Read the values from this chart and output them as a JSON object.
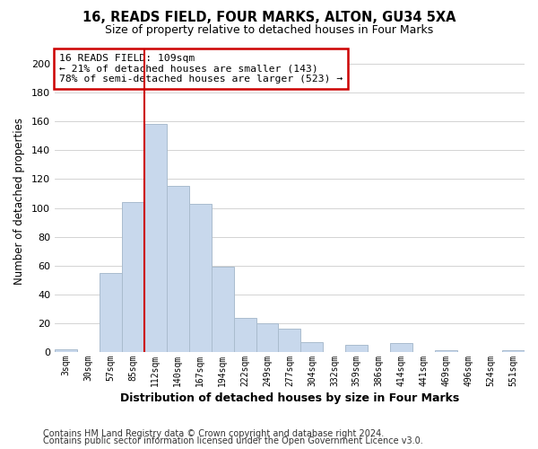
{
  "title": "16, READS FIELD, FOUR MARKS, ALTON, GU34 5XA",
  "subtitle": "Size of property relative to detached houses in Four Marks",
  "xlabel": "Distribution of detached houses by size in Four Marks",
  "ylabel": "Number of detached properties",
  "bar_color": "#c8d8ec",
  "bar_edge_color": "#aabcce",
  "categories": [
    "3sqm",
    "30sqm",
    "57sqm",
    "85sqm",
    "112sqm",
    "140sqm",
    "167sqm",
    "194sqm",
    "222sqm",
    "249sqm",
    "277sqm",
    "304sqm",
    "332sqm",
    "359sqm",
    "386sqm",
    "414sqm",
    "441sqm",
    "469sqm",
    "496sqm",
    "524sqm",
    "551sqm"
  ],
  "values": [
    2,
    0,
    55,
    104,
    158,
    115,
    103,
    59,
    24,
    20,
    16,
    7,
    0,
    5,
    0,
    6,
    0,
    1,
    0,
    0,
    1
  ],
  "ylim": [
    0,
    210
  ],
  "yticks": [
    0,
    20,
    40,
    60,
    80,
    100,
    120,
    140,
    160,
    180,
    200
  ],
  "property_line_label": "16 READS FIELD: 109sqm",
  "annotation_line1": "← 21% of detached houses are smaller (143)",
  "annotation_line2": "78% of semi-detached houses are larger (523) →",
  "annotation_box_color": "#ffffff",
  "annotation_border_color": "#cc0000",
  "grid_color": "#cccccc",
  "background_color": "#ffffff",
  "footer1": "Contains HM Land Registry data © Crown copyright and database right 2024.",
  "footer2": "Contains public sector information licensed under the Open Government Licence v3.0."
}
